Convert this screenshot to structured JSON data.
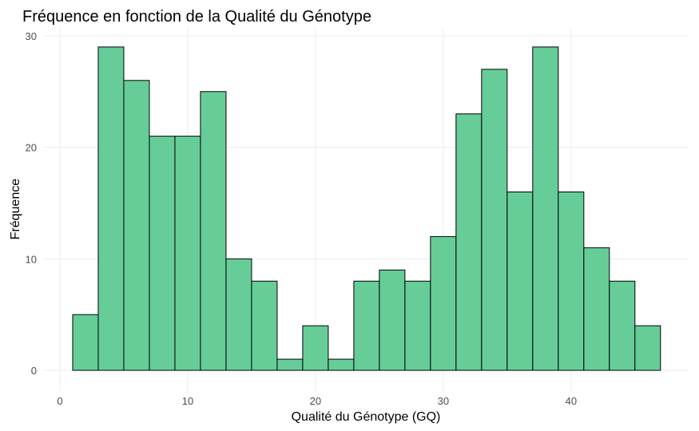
{
  "chart_data": {
    "type": "histogram",
    "title": "Fréquence en fonction de la Qualité du Génotype",
    "x_label": "Qualité du Génotype (GQ)",
    "y_label": "Fréquence",
    "bins": [
      1,
      3,
      5,
      7,
      9,
      11,
      13,
      15,
      17,
      19,
      21,
      23,
      25,
      27,
      29,
      31,
      33,
      35,
      37,
      39,
      41,
      43,
      45,
      47
    ],
    "values": [
      5,
      29,
      26,
      21,
      21,
      25,
      10,
      8,
      1,
      4,
      1,
      8,
      9,
      8,
      12,
      23,
      27,
      16,
      29,
      16,
      11,
      8,
      4
    ],
    "color": "#66cd99",
    "edge_color": "#000000",
    "xlim": [
      -1.25,
      49.2
    ],
    "ylim": [
      -1.86,
      30.71
    ],
    "xticks": [
      0,
      10,
      20,
      30,
      40
    ],
    "yticks": [
      0,
      10,
      20,
      30
    ],
    "grid": true
  }
}
